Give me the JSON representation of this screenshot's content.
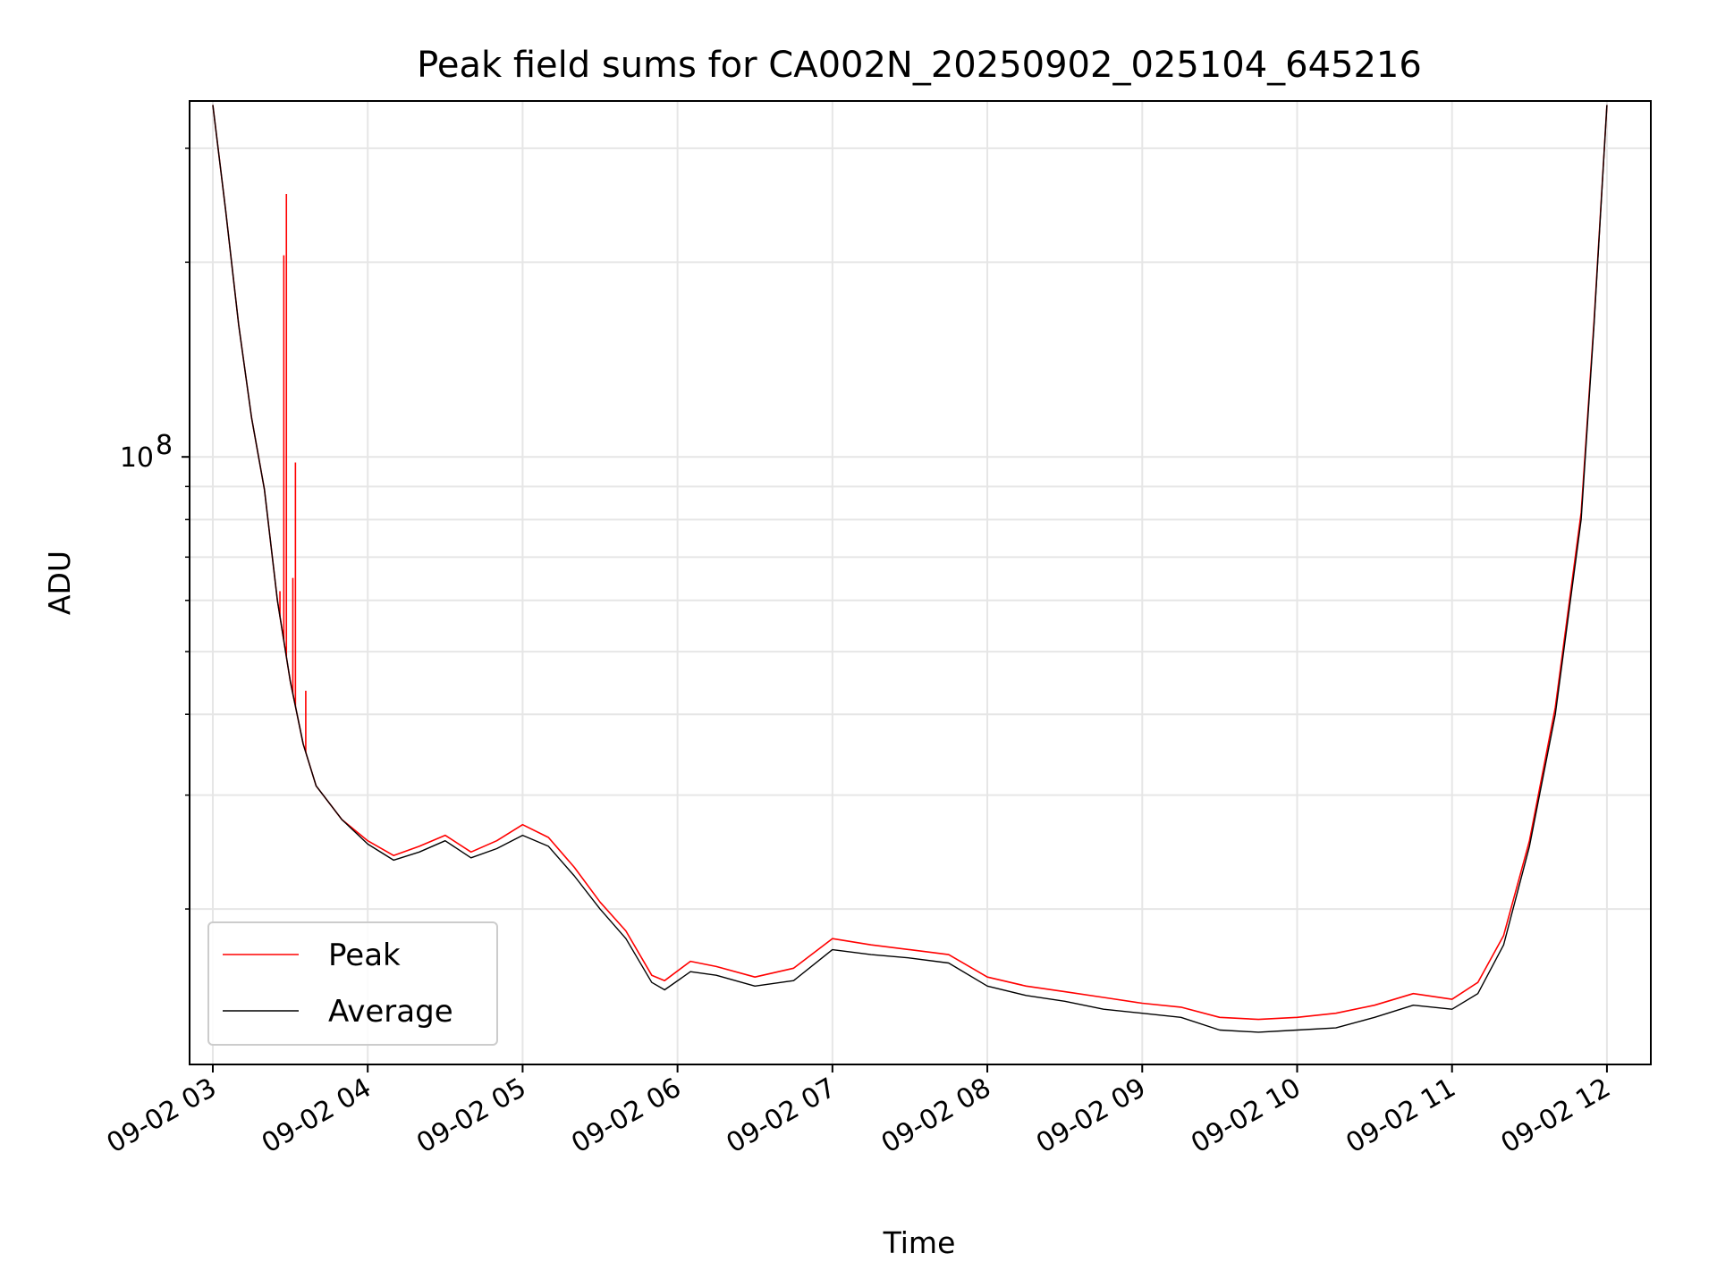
{
  "chart_data": {
    "type": "line",
    "title": "Peak field sums for CA002N_20250902_025104_645216",
    "xlabel": "Time",
    "ylabel": "ADU",
    "yscale": "log",
    "xlim": [
      "2025-09-02T02:51:00",
      "2025-09-02T12:17:00"
    ],
    "ylim": [
      11500000.0,
      355000000.0
    ],
    "x_ticks": [
      "09-02 03",
      "09-02 04",
      "09-02 05",
      "09-02 06",
      "09-02 07",
      "09-02 08",
      "09-02 09",
      "09-02 10",
      "09-02 11",
      "09-02 12"
    ],
    "x_tick_times": [
      "2025-09-02T03:00:00",
      "2025-09-02T04:00:00",
      "2025-09-02T05:00:00",
      "2025-09-02T06:00:00",
      "2025-09-02T07:00:00",
      "2025-09-02T08:00:00",
      "2025-09-02T09:00:00",
      "2025-09-02T10:00:00",
      "2025-09-02T11:00:00",
      "2025-09-02T12:00:00"
    ],
    "y_major_ticks": [
      {
        "value": 100000000.0,
        "label_base": "10",
        "label_exp": "8"
      }
    ],
    "y_minor_ticks": [
      20000000.0,
      30000000.0,
      40000000.0,
      50000000.0,
      60000000.0,
      70000000.0,
      80000000.0,
      90000000.0,
      200000000.0,
      300000000.0
    ],
    "grid": true,
    "legend": {
      "position": "lower-left",
      "entries": [
        "Peak",
        "Average"
      ]
    },
    "series": [
      {
        "name": "Average",
        "color": "#000000",
        "x": [
          "2025-09-02T03:00:00",
          "2025-09-02T03:05:00",
          "2025-09-02T03:10:00",
          "2025-09-02T03:15:00",
          "2025-09-02T03:20:00",
          "2025-09-02T03:25:00",
          "2025-09-02T03:30:00",
          "2025-09-02T03:35:00",
          "2025-09-02T03:40:00",
          "2025-09-02T03:50:00",
          "2025-09-02T04:00:00",
          "2025-09-02T04:10:00",
          "2025-09-02T04:20:00",
          "2025-09-02T04:30:00",
          "2025-09-02T04:40:00",
          "2025-09-02T04:50:00",
          "2025-09-02T05:00:00",
          "2025-09-02T05:10:00",
          "2025-09-02T05:20:00",
          "2025-09-02T05:30:00",
          "2025-09-02T05:40:00",
          "2025-09-02T05:50:00",
          "2025-09-02T05:55:00",
          "2025-09-02T06:05:00",
          "2025-09-02T06:15:00",
          "2025-09-02T06:30:00",
          "2025-09-02T06:45:00",
          "2025-09-02T07:00:00",
          "2025-09-02T07:15:00",
          "2025-09-02T07:30:00",
          "2025-09-02T07:45:00",
          "2025-09-02T08:00:00",
          "2025-09-02T08:15:00",
          "2025-09-02T08:30:00",
          "2025-09-02T08:45:00",
          "2025-09-02T09:00:00",
          "2025-09-02T09:15:00",
          "2025-09-02T09:30:00",
          "2025-09-02T09:45:00",
          "2025-09-02T10:00:00",
          "2025-09-02T10:15:00",
          "2025-09-02T10:30:00",
          "2025-09-02T10:45:00",
          "2025-09-02T11:00:00",
          "2025-09-02T11:10:00",
          "2025-09-02T11:20:00",
          "2025-09-02T11:30:00",
          "2025-09-02T11:40:00",
          "2025-09-02T11:50:00",
          "2025-09-02T11:55:00",
          "2025-09-02T12:00:00"
        ],
        "values": [
          350000000.0,
          240000000.0,
          160000000.0,
          115000000.0,
          89000000.0,
          60000000.0,
          45000000.0,
          36000000.0,
          31000000.0,
          27500000.0,
          25200000.0,
          23800000.0,
          24500000.0,
          25500000.0,
          24000000.0,
          24800000.0,
          26000000.0,
          25000000.0,
          22500000.0,
          20000000.0,
          18000000.0,
          15400000.0,
          15000000.0,
          16000000.0,
          15800000.0,
          15200000.0,
          15500000.0,
          17300000.0,
          17000000.0,
          16800000.0,
          16500000.0,
          15200000.0,
          14700000.0,
          14400000.0,
          14000000.0,
          13800000.0,
          13600000.0,
          13000000.0,
          12900000.0,
          13000000.0,
          13100000.0,
          13600000.0,
          14200000.0,
          14000000.0,
          14800000.0,
          17600000.0,
          25000000.0,
          40000000.0,
          80000000.0,
          160000000.0,
          350000000.0
        ]
      },
      {
        "name": "Peak",
        "color": "#ff0000",
        "x": [
          "2025-09-02T03:00:00",
          "2025-09-02T03:05:00",
          "2025-09-02T03:10:00",
          "2025-09-02T03:15:00",
          "2025-09-02T03:20:00",
          "2025-09-02T03:25:00",
          "2025-09-02T03:30:00",
          "2025-09-02T03:35:00",
          "2025-09-02T03:40:00",
          "2025-09-02T03:50:00",
          "2025-09-02T04:00:00",
          "2025-09-02T04:10:00",
          "2025-09-02T04:20:00",
          "2025-09-02T04:30:00",
          "2025-09-02T04:40:00",
          "2025-09-02T04:50:00",
          "2025-09-02T05:00:00",
          "2025-09-02T05:10:00",
          "2025-09-02T05:20:00",
          "2025-09-02T05:30:00",
          "2025-09-02T05:40:00",
          "2025-09-02T05:50:00",
          "2025-09-02T05:55:00",
          "2025-09-02T06:05:00",
          "2025-09-02T06:15:00",
          "2025-09-02T06:30:00",
          "2025-09-02T06:45:00",
          "2025-09-02T07:00:00",
          "2025-09-02T07:15:00",
          "2025-09-02T07:30:00",
          "2025-09-02T07:45:00",
          "2025-09-02T08:00:00",
          "2025-09-02T08:15:00",
          "2025-09-02T08:30:00",
          "2025-09-02T08:45:00",
          "2025-09-02T09:00:00",
          "2025-09-02T09:15:00",
          "2025-09-02T09:30:00",
          "2025-09-02T09:45:00",
          "2025-09-02T10:00:00",
          "2025-09-02T10:15:00",
          "2025-09-02T10:30:00",
          "2025-09-02T10:45:00",
          "2025-09-02T11:00:00",
          "2025-09-02T11:10:00",
          "2025-09-02T11:20:00",
          "2025-09-02T11:30:00",
          "2025-09-02T11:40:00",
          "2025-09-02T11:50:00",
          "2025-09-02T11:55:00",
          "2025-09-02T12:00:00"
        ],
        "values": [
          350000000.0,
          240000000.0,
          160000000.0,
          115000000.0,
          89000000.0,
          60000000.0,
          45000000.0,
          36000000.0,
          31000000.0,
          27500000.0,
          25500000.0,
          24200000.0,
          25000000.0,
          26000000.0,
          24500000.0,
          25500000.0,
          27000000.0,
          25800000.0,
          23200000.0,
          20500000.0,
          18500000.0,
          15800000.0,
          15500000.0,
          16600000.0,
          16300000.0,
          15700000.0,
          16200000.0,
          18000000.0,
          17600000.0,
          17300000.0,
          17000000.0,
          15700000.0,
          15200000.0,
          14900000.0,
          14600000.0,
          14300000.0,
          14100000.0,
          13600000.0,
          13500000.0,
          13600000.0,
          13800000.0,
          14200000.0,
          14800000.0,
          14500000.0,
          15400000.0,
          18200000.0,
          25500000.0,
          41000000.0,
          82000000.0,
          162000000.0,
          350000000.0
        ],
        "spikes": [
          {
            "x": "2025-09-02T03:26:00",
            "value": 62000000.0
          },
          {
            "x": "2025-09-02T03:27:30",
            "value": 205000000.0
          },
          {
            "x": "2025-09-02T03:28:30",
            "value": 255000000.0
          },
          {
            "x": "2025-09-02T03:31:00",
            "value": 65000000.0
          },
          {
            "x": "2025-09-02T03:32:00",
            "value": 98000000.0
          },
          {
            "x": "2025-09-02T03:36:00",
            "value": 43500000.0
          }
        ]
      }
    ]
  }
}
